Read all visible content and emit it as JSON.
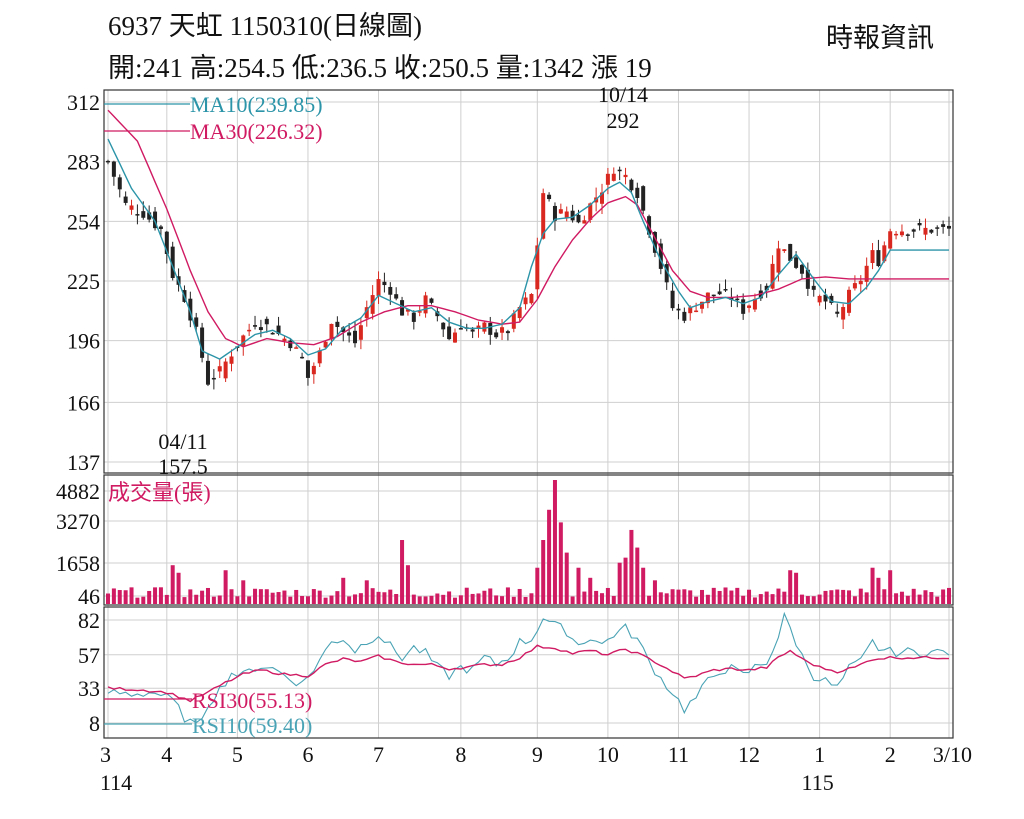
{
  "header": {
    "title": "6937  天虹 1150310(日線圖)",
    "ohlc": "開:241 高:254.5 低:236.5 收:250.5 量:1342 漲 19",
    "source": "時報資訊"
  },
  "colors": {
    "up": "#d8281f",
    "down": "#222222",
    "ma10": "#2b94a8",
    "ma30": "#d01a62",
    "volume": "#d01a62",
    "rsi10": "#4aa3b5",
    "rsi30": "#d01a62",
    "grid": "#cfcfcf"
  },
  "chart_data": {
    "type": "line",
    "price_panel": {
      "y_ticks": [
        "312",
        "283",
        "254",
        "225",
        "196",
        "166",
        "137"
      ],
      "ylim": [
        137,
        312
      ],
      "legend": [
        {
          "key": "ma10",
          "label": "MA10(239.85)"
        },
        {
          "key": "ma30",
          "label": "MA30(226.32)"
        }
      ],
      "annotations": [
        {
          "date_label": "10/14",
          "value_label": "292",
          "value": 292
        },
        {
          "date_label": "04/11",
          "value_label": "157.5",
          "value": 157.5
        }
      ],
      "close_anchors": [
        [
          0,
          283
        ],
        [
          3,
          262
        ],
        [
          6,
          258
        ],
        [
          9,
          250
        ],
        [
          11,
          228
        ],
        [
          13,
          217
        ],
        [
          15,
          200
        ],
        [
          17,
          176
        ],
        [
          19,
          181
        ],
        [
          21,
          190
        ],
        [
          23,
          198
        ],
        [
          25,
          205
        ],
        [
          27,
          203
        ],
        [
          29,
          199
        ],
        [
          31,
          195
        ],
        [
          33,
          187
        ],
        [
          34,
          178
        ],
        [
          36,
          190
        ],
        [
          38,
          206
        ],
        [
          40,
          200
        ],
        [
          42,
          195
        ],
        [
          44,
          212
        ],
        [
          46,
          225
        ],
        [
          48,
          221
        ],
        [
          50,
          210
        ],
        [
          52,
          207
        ],
        [
          54,
          216
        ],
        [
          56,
          208
        ],
        [
          58,
          197
        ],
        [
          60,
          204
        ],
        [
          62,
          199
        ],
        [
          64,
          203
        ],
        [
          66,
          199
        ],
        [
          68,
          201
        ],
        [
          70,
          212
        ],
        [
          72,
          218
        ],
        [
          74,
          268
        ],
        [
          76,
          257
        ],
        [
          78,
          259
        ],
        [
          80,
          253
        ],
        [
          82,
          262
        ],
        [
          84,
          270
        ],
        [
          86,
          280
        ],
        [
          88,
          276
        ],
        [
          90,
          268
        ],
        [
          92,
          250
        ],
        [
          94,
          232
        ],
        [
          96,
          212
        ],
        [
          98,
          208
        ],
        [
          100,
          213
        ],
        [
          102,
          218
        ],
        [
          104,
          219
        ],
        [
          106,
          217
        ],
        [
          108,
          211
        ],
        [
          110,
          217
        ],
        [
          112,
          222
        ],
        [
          114,
          243
        ],
        [
          116,
          236
        ],
        [
          118,
          230
        ],
        [
          120,
          218
        ],
        [
          122,
          215
        ],
        [
          124,
          208
        ],
        [
          126,
          218
        ],
        [
          128,
          226
        ],
        [
          130,
          238
        ],
        [
          131,
          235
        ],
        [
          133,
          250
        ]
      ],
      "ma10_anchors": [
        [
          0,
          294
        ],
        [
          4,
          270
        ],
        [
          8,
          254
        ],
        [
          11,
          232
        ],
        [
          14,
          210
        ],
        [
          16,
          191
        ],
        [
          19,
          187
        ],
        [
          22,
          193
        ],
        [
          25,
          199
        ],
        [
          28,
          201
        ],
        [
          31,
          197
        ],
        [
          34,
          189
        ],
        [
          37,
          192
        ],
        [
          40,
          202
        ],
        [
          43,
          207
        ],
        [
          46,
          218
        ],
        [
          49,
          214
        ],
        [
          52,
          210
        ],
        [
          55,
          212
        ],
        [
          58,
          205
        ],
        [
          61,
          202
        ],
        [
          64,
          202
        ],
        [
          67,
          204
        ],
        [
          70,
          212
        ],
        [
          72,
          232
        ],
        [
          74,
          248
        ],
        [
          76,
          255
        ],
        [
          79,
          256
        ],
        [
          82,
          262
        ],
        [
          85,
          270
        ],
        [
          87,
          273
        ],
        [
          89,
          268
        ],
        [
          91,
          254
        ],
        [
          94,
          235
        ],
        [
          97,
          220
        ],
        [
          99,
          212
        ],
        [
          102,
          215
        ],
        [
          105,
          217
        ],
        [
          108,
          214
        ],
        [
          111,
          217
        ],
        [
          114,
          228
        ],
        [
          117,
          238
        ],
        [
          120,
          226
        ],
        [
          123,
          215
        ],
        [
          126,
          214
        ],
        [
          129,
          222
        ],
        [
          131,
          230
        ],
        [
          133,
          240
        ]
      ],
      "ma30_anchors": [
        [
          0,
          308
        ],
        [
          5,
          293
        ],
        [
          10,
          260
        ],
        [
          14,
          230
        ],
        [
          17,
          210
        ],
        [
          20,
          197
        ],
        [
          23,
          193
        ],
        [
          27,
          197
        ],
        [
          31,
          195
        ],
        [
          35,
          194
        ],
        [
          39,
          198
        ],
        [
          43,
          205
        ],
        [
          47,
          210
        ],
        [
          51,
          213
        ],
        [
          55,
          213
        ],
        [
          59,
          210
        ],
        [
          63,
          206
        ],
        [
          67,
          204
        ],
        [
          70,
          205
        ],
        [
          73,
          216
        ],
        [
          76,
          232
        ],
        [
          79,
          245
        ],
        [
          82,
          255
        ],
        [
          85,
          263
        ],
        [
          88,
          266
        ],
        [
          90,
          262
        ],
        [
          93,
          246
        ],
        [
          96,
          230
        ],
        [
          99,
          220
        ],
        [
          102,
          217
        ],
        [
          106,
          217
        ],
        [
          110,
          218
        ],
        [
          114,
          221
        ],
        [
          118,
          226
        ],
        [
          122,
          227
        ],
        [
          126,
          226
        ],
        [
          130,
          226
        ],
        [
          133,
          226
        ]
      ]
    },
    "volume_panel": {
      "title": "成交量(張)",
      "y_ticks": [
        "4882",
        "3270",
        "1658",
        "46"
      ],
      "ylim": [
        0,
        4882
      ],
      "spikes": [
        [
          11,
          1500
        ],
        [
          12,
          1200
        ],
        [
          20,
          1300
        ],
        [
          23,
          900
        ],
        [
          40,
          1000
        ],
        [
          44,
          900
        ],
        [
          50,
          2500
        ],
        [
          51,
          1500
        ],
        [
          73,
          1400
        ],
        [
          74,
          2500
        ],
        [
          75,
          3700
        ],
        [
          76,
          4882
        ],
        [
          77,
          3200
        ],
        [
          78,
          2000
        ],
        [
          80,
          1400
        ],
        [
          82,
          1000
        ],
        [
          87,
          1600
        ],
        [
          88,
          1800
        ],
        [
          89,
          2900
        ],
        [
          90,
          2200
        ],
        [
          91,
          1400
        ],
        [
          93,
          900
        ],
        [
          116,
          1300
        ],
        [
          117,
          1200
        ],
        [
          130,
          1400
        ],
        [
          131,
          1000
        ],
        [
          133,
          1300
        ]
      ],
      "base_volume": 420
    },
    "rsi_panel": {
      "y_ticks": [
        "82",
        "57",
        "33",
        "8"
      ],
      "ylim": [
        0,
        90
      ],
      "legend": [
        {
          "key": "rsi30",
          "label": "RSI30(55.13)"
        },
        {
          "key": "rsi10",
          "label": "RSI10(59.40)"
        }
      ],
      "rsi10_anchors": [
        [
          0,
          30
        ],
        [
          4,
          29
        ],
        [
          8,
          30
        ],
        [
          11,
          24
        ],
        [
          13,
          12
        ],
        [
          15,
          5
        ],
        [
          17,
          22
        ],
        [
          19,
          32
        ],
        [
          21,
          44
        ],
        [
          23,
          42
        ],
        [
          25,
          48
        ],
        [
          27,
          49
        ],
        [
          29,
          45
        ],
        [
          31,
          40
        ],
        [
          33,
          36
        ],
        [
          35,
          47
        ],
        [
          38,
          66
        ],
        [
          40,
          69
        ],
        [
          42,
          60
        ],
        [
          44,
          67
        ],
        [
          46,
          72
        ],
        [
          48,
          63
        ],
        [
          50,
          55
        ],
        [
          52,
          62
        ],
        [
          54,
          58
        ],
        [
          56,
          48
        ],
        [
          58,
          42
        ],
        [
          60,
          48
        ],
        [
          62,
          46
        ],
        [
          64,
          55
        ],
        [
          66,
          50
        ],
        [
          68,
          55
        ],
        [
          70,
          66
        ],
        [
          72,
          68
        ],
        [
          74,
          84
        ],
        [
          76,
          78
        ],
        [
          78,
          74
        ],
        [
          80,
          64
        ],
        [
          82,
          70
        ],
        [
          84,
          64
        ],
        [
          86,
          72
        ],
        [
          88,
          76
        ],
        [
          90,
          68
        ],
        [
          92,
          52
        ],
        [
          94,
          40
        ],
        [
          96,
          30
        ],
        [
          98,
          18
        ],
        [
          100,
          26
        ],
        [
          102,
          38
        ],
        [
          104,
          46
        ],
        [
          106,
          47
        ],
        [
          108,
          42
        ],
        [
          110,
          48
        ],
        [
          112,
          52
        ],
        [
          114,
          70
        ],
        [
          115,
          84
        ],
        [
          116,
          76
        ],
        [
          118,
          56
        ],
        [
          120,
          42
        ],
        [
          122,
          38
        ],
        [
          124,
          33
        ],
        [
          126,
          47
        ],
        [
          128,
          52
        ],
        [
          130,
          66
        ],
        [
          131,
          62
        ],
        [
          133,
          59
        ]
      ],
      "rsi30_anchors": [
        [
          0,
          33
        ],
        [
          5,
          32
        ],
        [
          10,
          30
        ],
        [
          14,
          24
        ],
        [
          17,
          30
        ],
        [
          20,
          37
        ],
        [
          23,
          43
        ],
        [
          26,
          46
        ],
        [
          30,
          43
        ],
        [
          34,
          42
        ],
        [
          37,
          50
        ],
        [
          40,
          54
        ],
        [
          43,
          52
        ],
        [
          46,
          56
        ],
        [
          49,
          52
        ],
        [
          52,
          50
        ],
        [
          55,
          50
        ],
        [
          58,
          47
        ],
        [
          61,
          48
        ],
        [
          64,
          50
        ],
        [
          67,
          50
        ],
        [
          70,
          55
        ],
        [
          73,
          63
        ],
        [
          76,
          62
        ],
        [
          79,
          58
        ],
        [
          82,
          60
        ],
        [
          85,
          57
        ],
        [
          88,
          61
        ],
        [
          90,
          58
        ],
        [
          93,
          52
        ],
        [
          96,
          45
        ],
        [
          98,
          40
        ],
        [
          100,
          42
        ],
        [
          103,
          46
        ],
        [
          106,
          47
        ],
        [
          109,
          46
        ],
        [
          112,
          48
        ],
        [
          114,
          55
        ],
        [
          116,
          60
        ],
        [
          118,
          54
        ],
        [
          121,
          48
        ],
        [
          124,
          45
        ],
        [
          127,
          48
        ],
        [
          130,
          54
        ],
        [
          133,
          55
        ]
      ]
    },
    "x_axis": {
      "month_labels": [
        {
          "label": "3",
          "sub": "114",
          "bar": 0
        },
        {
          "label": "4",
          "bar": 10
        },
        {
          "label": "5",
          "bar": 22
        },
        {
          "label": "6",
          "bar": 34
        },
        {
          "label": "7",
          "bar": 46
        },
        {
          "label": "8",
          "bar": 60
        },
        {
          "label": "9",
          "bar": 73
        },
        {
          "label": "10",
          "bar": 85
        },
        {
          "label": "11",
          "bar": 97
        },
        {
          "label": "12",
          "bar": 109
        },
        {
          "label": "1",
          "sub": "115",
          "bar": 121
        },
        {
          "label": "2",
          "bar": 133
        },
        {
          "label": "3/10",
          "bar": 143
        }
      ]
    }
  }
}
